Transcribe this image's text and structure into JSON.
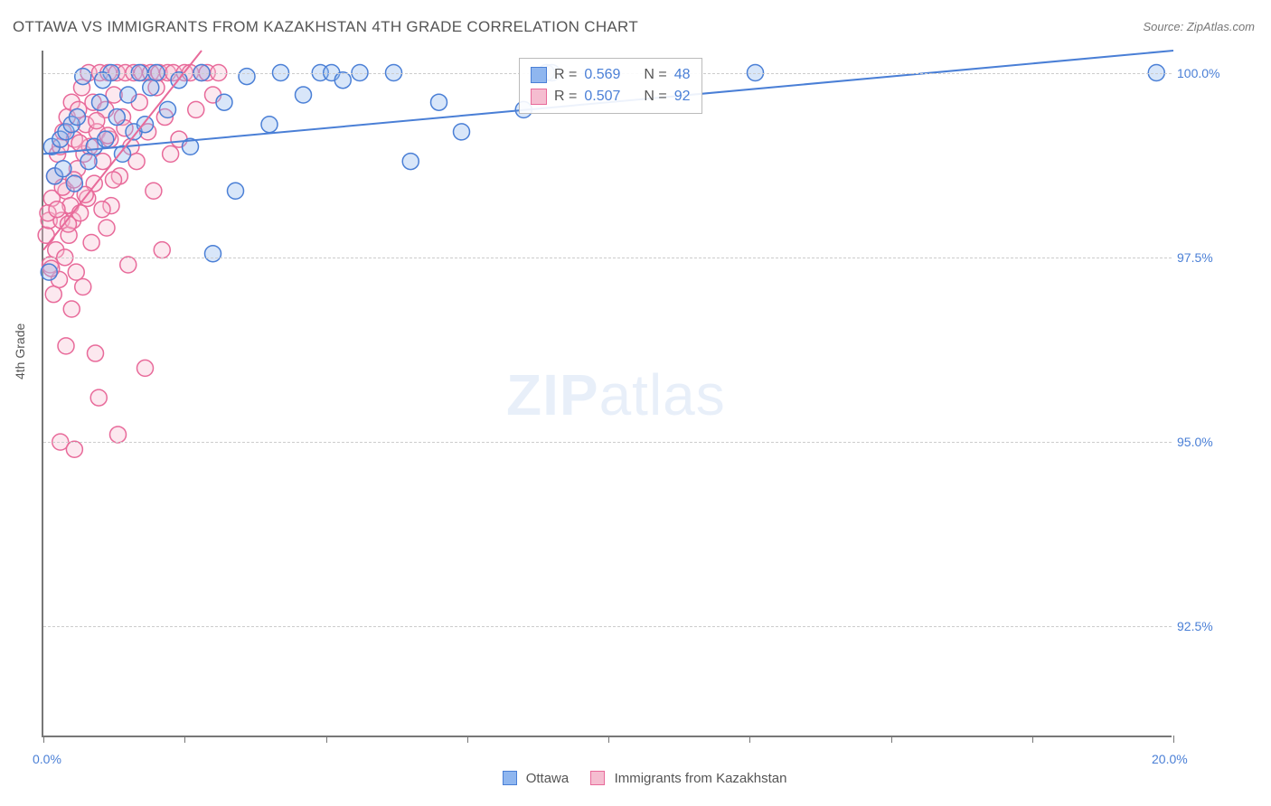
{
  "title": "OTTAWA VS IMMIGRANTS FROM KAZAKHSTAN 4TH GRADE CORRELATION CHART",
  "source": "Source: ZipAtlas.com",
  "y_axis_label": "4th Grade",
  "watermark_zip": "ZIP",
  "watermark_atlas": "atlas",
  "chart": {
    "type": "scatter",
    "xlim": [
      0.0,
      20.0
    ],
    "ylim": [
      91.0,
      100.3
    ],
    "x_ticks": [
      0.0,
      2.5,
      5.0,
      7.5,
      10.0,
      12.5,
      15.0,
      17.5,
      20.0
    ],
    "x_tick_labels": {
      "0": "0.0%",
      "20": "20.0%"
    },
    "y_ticks": [
      92.5,
      95.0,
      97.5,
      100.0
    ],
    "y_tick_labels": [
      "92.5%",
      "95.0%",
      "97.5%",
      "100.0%"
    ],
    "background_color": "#ffffff",
    "grid_color": "#cccccc",
    "axis_color": "#777777",
    "label_color": "#4a7fd6",
    "point_radius": 9,
    "series": [
      {
        "name": "Ottawa",
        "color_fill": "#8fb6ef",
        "color_stroke": "#4a7fd6",
        "R": "0.569",
        "N": "48",
        "trend": {
          "x1": 0.0,
          "y1": 98.9,
          "x2": 20.0,
          "y2": 100.3
        },
        "points": [
          [
            0.1,
            97.3
          ],
          [
            0.15,
            99.0
          ],
          [
            0.2,
            98.6
          ],
          [
            0.3,
            99.1
          ],
          [
            0.35,
            98.7
          ],
          [
            0.4,
            99.2
          ],
          [
            0.5,
            99.3
          ],
          [
            0.55,
            98.5
          ],
          [
            0.6,
            99.4
          ],
          [
            0.7,
            99.95
          ],
          [
            0.8,
            98.8
          ],
          [
            0.9,
            99.0
          ],
          [
            1.0,
            99.6
          ],
          [
            1.1,
            99.1
          ],
          [
            1.2,
            100.0
          ],
          [
            1.3,
            99.4
          ],
          [
            1.4,
            98.9
          ],
          [
            1.5,
            99.7
          ],
          [
            1.6,
            99.2
          ],
          [
            1.7,
            100.0
          ],
          [
            1.8,
            99.3
          ],
          [
            1.9,
            99.8
          ],
          [
            2.0,
            100.0
          ],
          [
            2.2,
            99.5
          ],
          [
            2.4,
            99.9
          ],
          [
            2.6,
            99.0
          ],
          [
            2.8,
            100.0
          ],
          [
            3.0,
            97.55
          ],
          [
            3.2,
            99.6
          ],
          [
            3.4,
            98.4
          ],
          [
            3.6,
            99.95
          ],
          [
            4.0,
            99.3
          ],
          [
            4.2,
            100.0
          ],
          [
            4.6,
            99.7
          ],
          [
            4.9,
            100.0
          ],
          [
            5.1,
            100.0
          ],
          [
            5.3,
            99.9
          ],
          [
            5.6,
            100.0
          ],
          [
            6.2,
            100.0
          ],
          [
            6.5,
            98.8
          ],
          [
            7.0,
            99.6
          ],
          [
            7.4,
            99.2
          ],
          [
            8.5,
            99.5
          ],
          [
            8.9,
            100.0
          ],
          [
            9.0,
            100.0
          ],
          [
            12.6,
            100.0
          ],
          [
            19.7,
            100.0
          ],
          [
            1.05,
            99.9
          ]
        ]
      },
      {
        "name": "Immigrants from Kazakhstan",
        "color_fill": "#f5bdd0",
        "color_stroke": "#e86a9a",
        "R": "0.507",
        "N": "92",
        "trend": {
          "x1": 0.0,
          "y1": 97.6,
          "x2": 2.8,
          "y2": 100.3
        },
        "points": [
          [
            0.05,
            97.8
          ],
          [
            0.1,
            98.0
          ],
          [
            0.12,
            97.4
          ],
          [
            0.15,
            98.3
          ],
          [
            0.18,
            97.0
          ],
          [
            0.2,
            98.6
          ],
          [
            0.22,
            97.6
          ],
          [
            0.25,
            98.9
          ],
          [
            0.28,
            97.2
          ],
          [
            0.3,
            99.0
          ],
          [
            0.32,
            98.0
          ],
          [
            0.35,
            99.2
          ],
          [
            0.38,
            97.5
          ],
          [
            0.4,
            98.4
          ],
          [
            0.42,
            99.4
          ],
          [
            0.45,
            97.8
          ],
          [
            0.48,
            98.2
          ],
          [
            0.5,
            99.6
          ],
          [
            0.52,
            98.0
          ],
          [
            0.55,
            99.1
          ],
          [
            0.58,
            97.3
          ],
          [
            0.6,
            98.7
          ],
          [
            0.62,
            99.5
          ],
          [
            0.65,
            98.1
          ],
          [
            0.68,
            99.8
          ],
          [
            0.7,
            97.1
          ],
          [
            0.72,
            98.9
          ],
          [
            0.75,
            99.3
          ],
          [
            0.78,
            98.3
          ],
          [
            0.8,
            100.0
          ],
          [
            0.82,
            99.0
          ],
          [
            0.85,
            97.7
          ],
          [
            0.88,
            99.6
          ],
          [
            0.9,
            98.5
          ],
          [
            0.92,
            96.2
          ],
          [
            0.95,
            99.2
          ],
          [
            0.98,
            95.6
          ],
          [
            1.0,
            100.0
          ],
          [
            1.05,
            98.8
          ],
          [
            1.1,
            99.5
          ],
          [
            1.12,
            97.9
          ],
          [
            1.15,
            100.0
          ],
          [
            1.18,
            99.1
          ],
          [
            1.2,
            98.2
          ],
          [
            1.25,
            99.7
          ],
          [
            1.3,
            100.0
          ],
          [
            1.32,
            95.1
          ],
          [
            1.35,
            98.6
          ],
          [
            1.4,
            99.4
          ],
          [
            1.45,
            100.0
          ],
          [
            1.5,
            97.4
          ],
          [
            1.55,
            99.0
          ],
          [
            1.6,
            100.0
          ],
          [
            1.65,
            98.8
          ],
          [
            1.7,
            99.6
          ],
          [
            1.75,
            100.0
          ],
          [
            1.8,
            96.0
          ],
          [
            1.85,
            99.2
          ],
          [
            1.9,
            100.0
          ],
          [
            1.95,
            98.4
          ],
          [
            2.0,
            99.8
          ],
          [
            2.05,
            100.0
          ],
          [
            2.1,
            97.6
          ],
          [
            2.15,
            99.4
          ],
          [
            2.2,
            100.0
          ],
          [
            2.25,
            98.9
          ],
          [
            2.3,
            100.0
          ],
          [
            2.4,
            99.1
          ],
          [
            2.5,
            100.0
          ],
          [
            2.6,
            100.0
          ],
          [
            2.7,
            99.5
          ],
          [
            2.8,
            100.0
          ],
          [
            2.9,
            100.0
          ],
          [
            3.0,
            99.7
          ],
          [
            3.1,
            100.0
          ],
          [
            0.3,
            95.0
          ],
          [
            0.4,
            96.3
          ],
          [
            0.5,
            96.8
          ],
          [
            0.55,
            94.9
          ],
          [
            0.08,
            98.1
          ],
          [
            0.14,
            97.35
          ],
          [
            0.24,
            98.15
          ],
          [
            0.34,
            98.45
          ],
          [
            0.44,
            97.95
          ],
          [
            0.54,
            98.55
          ],
          [
            0.64,
            99.05
          ],
          [
            0.74,
            98.35
          ],
          [
            0.94,
            99.35
          ],
          [
            1.04,
            98.15
          ],
          [
            1.14,
            99.15
          ],
          [
            1.24,
            98.55
          ],
          [
            1.44,
            99.25
          ]
        ]
      }
    ]
  },
  "legend_box": {
    "row1_R_label": "R =",
    "row1_N_label": "N =",
    "row2_R_label": "R =",
    "row2_N_label": "N ="
  },
  "bottom_legend": {
    "label1": "Ottawa",
    "label2": "Immigrants from Kazakhstan"
  }
}
